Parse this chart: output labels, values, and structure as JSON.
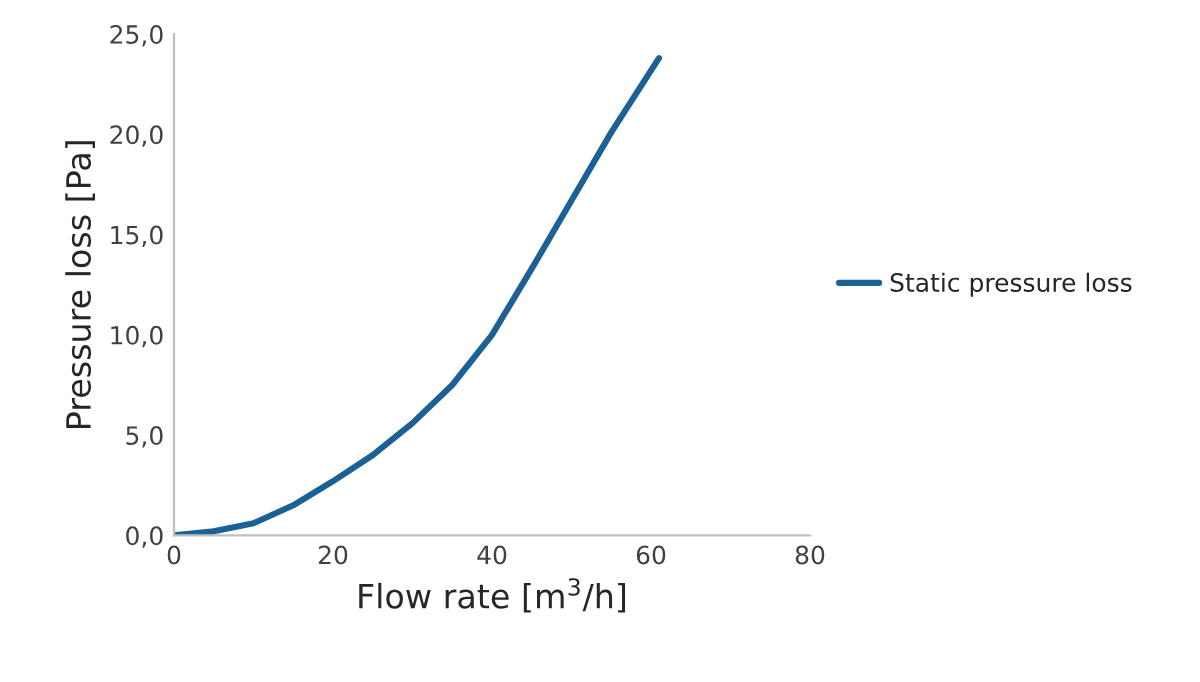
{
  "chart_data": {
    "type": "line",
    "xlabel": "Flow rate [m$^{3}$/h]",
    "ylabel": "Pressure loss [Pa]",
    "xlim": [
      0,
      80
    ],
    "xticks": [
      0,
      20,
      40,
      60,
      80
    ],
    "ylim": [
      0,
      25
    ],
    "yticks": [
      {
        "value": 0,
        "label": "0,0"
      },
      {
        "value": 5,
        "label": "5,0"
      },
      {
        "value": 10,
        "label": "10,0"
      },
      {
        "value": 15,
        "label": "15,0"
      },
      {
        "value": 20,
        "label": "20,0"
      },
      {
        "value": 25,
        "label": "25,0"
      }
    ],
    "grid": false,
    "legend": "right",
    "marker": "none",
    "line_style": "solid",
    "series": [
      {
        "name": "Static pressure loss",
        "color": "#1b6196",
        "x": [
          0,
          5,
          10,
          15,
          20,
          25,
          30,
          35,
          40,
          45,
          50,
          55,
          61
        ],
        "values": [
          0,
          0.2,
          0.6,
          1.5,
          2.7,
          4.0,
          5.6,
          7.5,
          10.0,
          13.3,
          16.7,
          20.1,
          23.8
        ]
      }
    ]
  }
}
